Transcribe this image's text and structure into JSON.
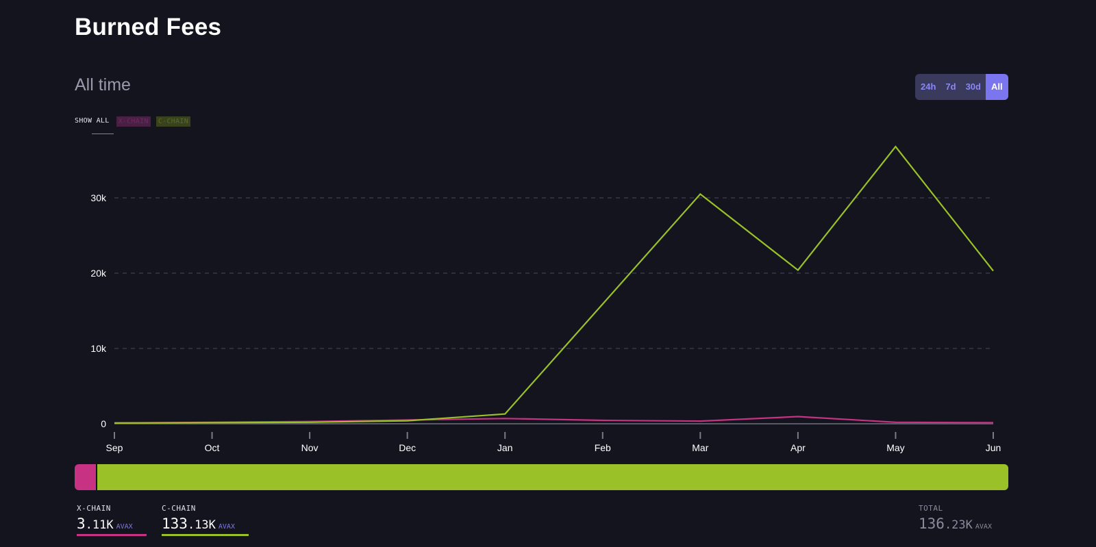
{
  "header": {
    "title": "Burned Fees",
    "range_label": "All time"
  },
  "range_toggle": {
    "options": [
      "24h",
      "7d",
      "30d",
      "All"
    ],
    "selected": "All"
  },
  "legend_filter": {
    "show_all": "SHOW ALL",
    "chips": [
      "X-CHAIN",
      "C-CHAIN"
    ]
  },
  "colors": {
    "background": "#14141f",
    "x_chain": "#c83283",
    "c_chain": "#9bc128",
    "accent": "#7b76f0",
    "grid": "#4a4a5a"
  },
  "chart_data": {
    "type": "line",
    "categories": [
      "Sep",
      "Oct",
      "Nov",
      "Dec",
      "Jan",
      "Feb",
      "Mar",
      "Apr",
      "May",
      "Jun"
    ],
    "series": [
      {
        "name": "X-CHAIN",
        "color": "#c83283",
        "values": [
          100,
          200,
          300,
          500,
          700,
          450,
          350,
          950,
          200,
          150
        ]
      },
      {
        "name": "C-CHAIN",
        "color": "#9bc128",
        "values": [
          100,
          150,
          200,
          400,
          1300,
          15900,
          30500,
          20400,
          36800,
          20300
        ]
      }
    ],
    "yticks": [
      "0",
      "10k",
      "20k",
      "30k"
    ],
    "ytick_values": [
      0,
      10000,
      20000,
      30000
    ],
    "ylim": [
      0,
      37000
    ],
    "grid": true,
    "title": "",
    "xlabel": "",
    "ylabel": ""
  },
  "totals": {
    "x_chain": {
      "label": "X-CHAIN",
      "value_int": "3",
      "value_frac": ".11K",
      "unit": "AVAX",
      "share": 0.0228
    },
    "c_chain": {
      "label": "C-CHAIN",
      "value_int": "133",
      "value_frac": ".13K",
      "unit": "AVAX",
      "share": 0.9772
    },
    "total": {
      "label": "TOTAL",
      "value_int": "136",
      "value_frac": ".23K",
      "unit": "AVAX"
    }
  }
}
